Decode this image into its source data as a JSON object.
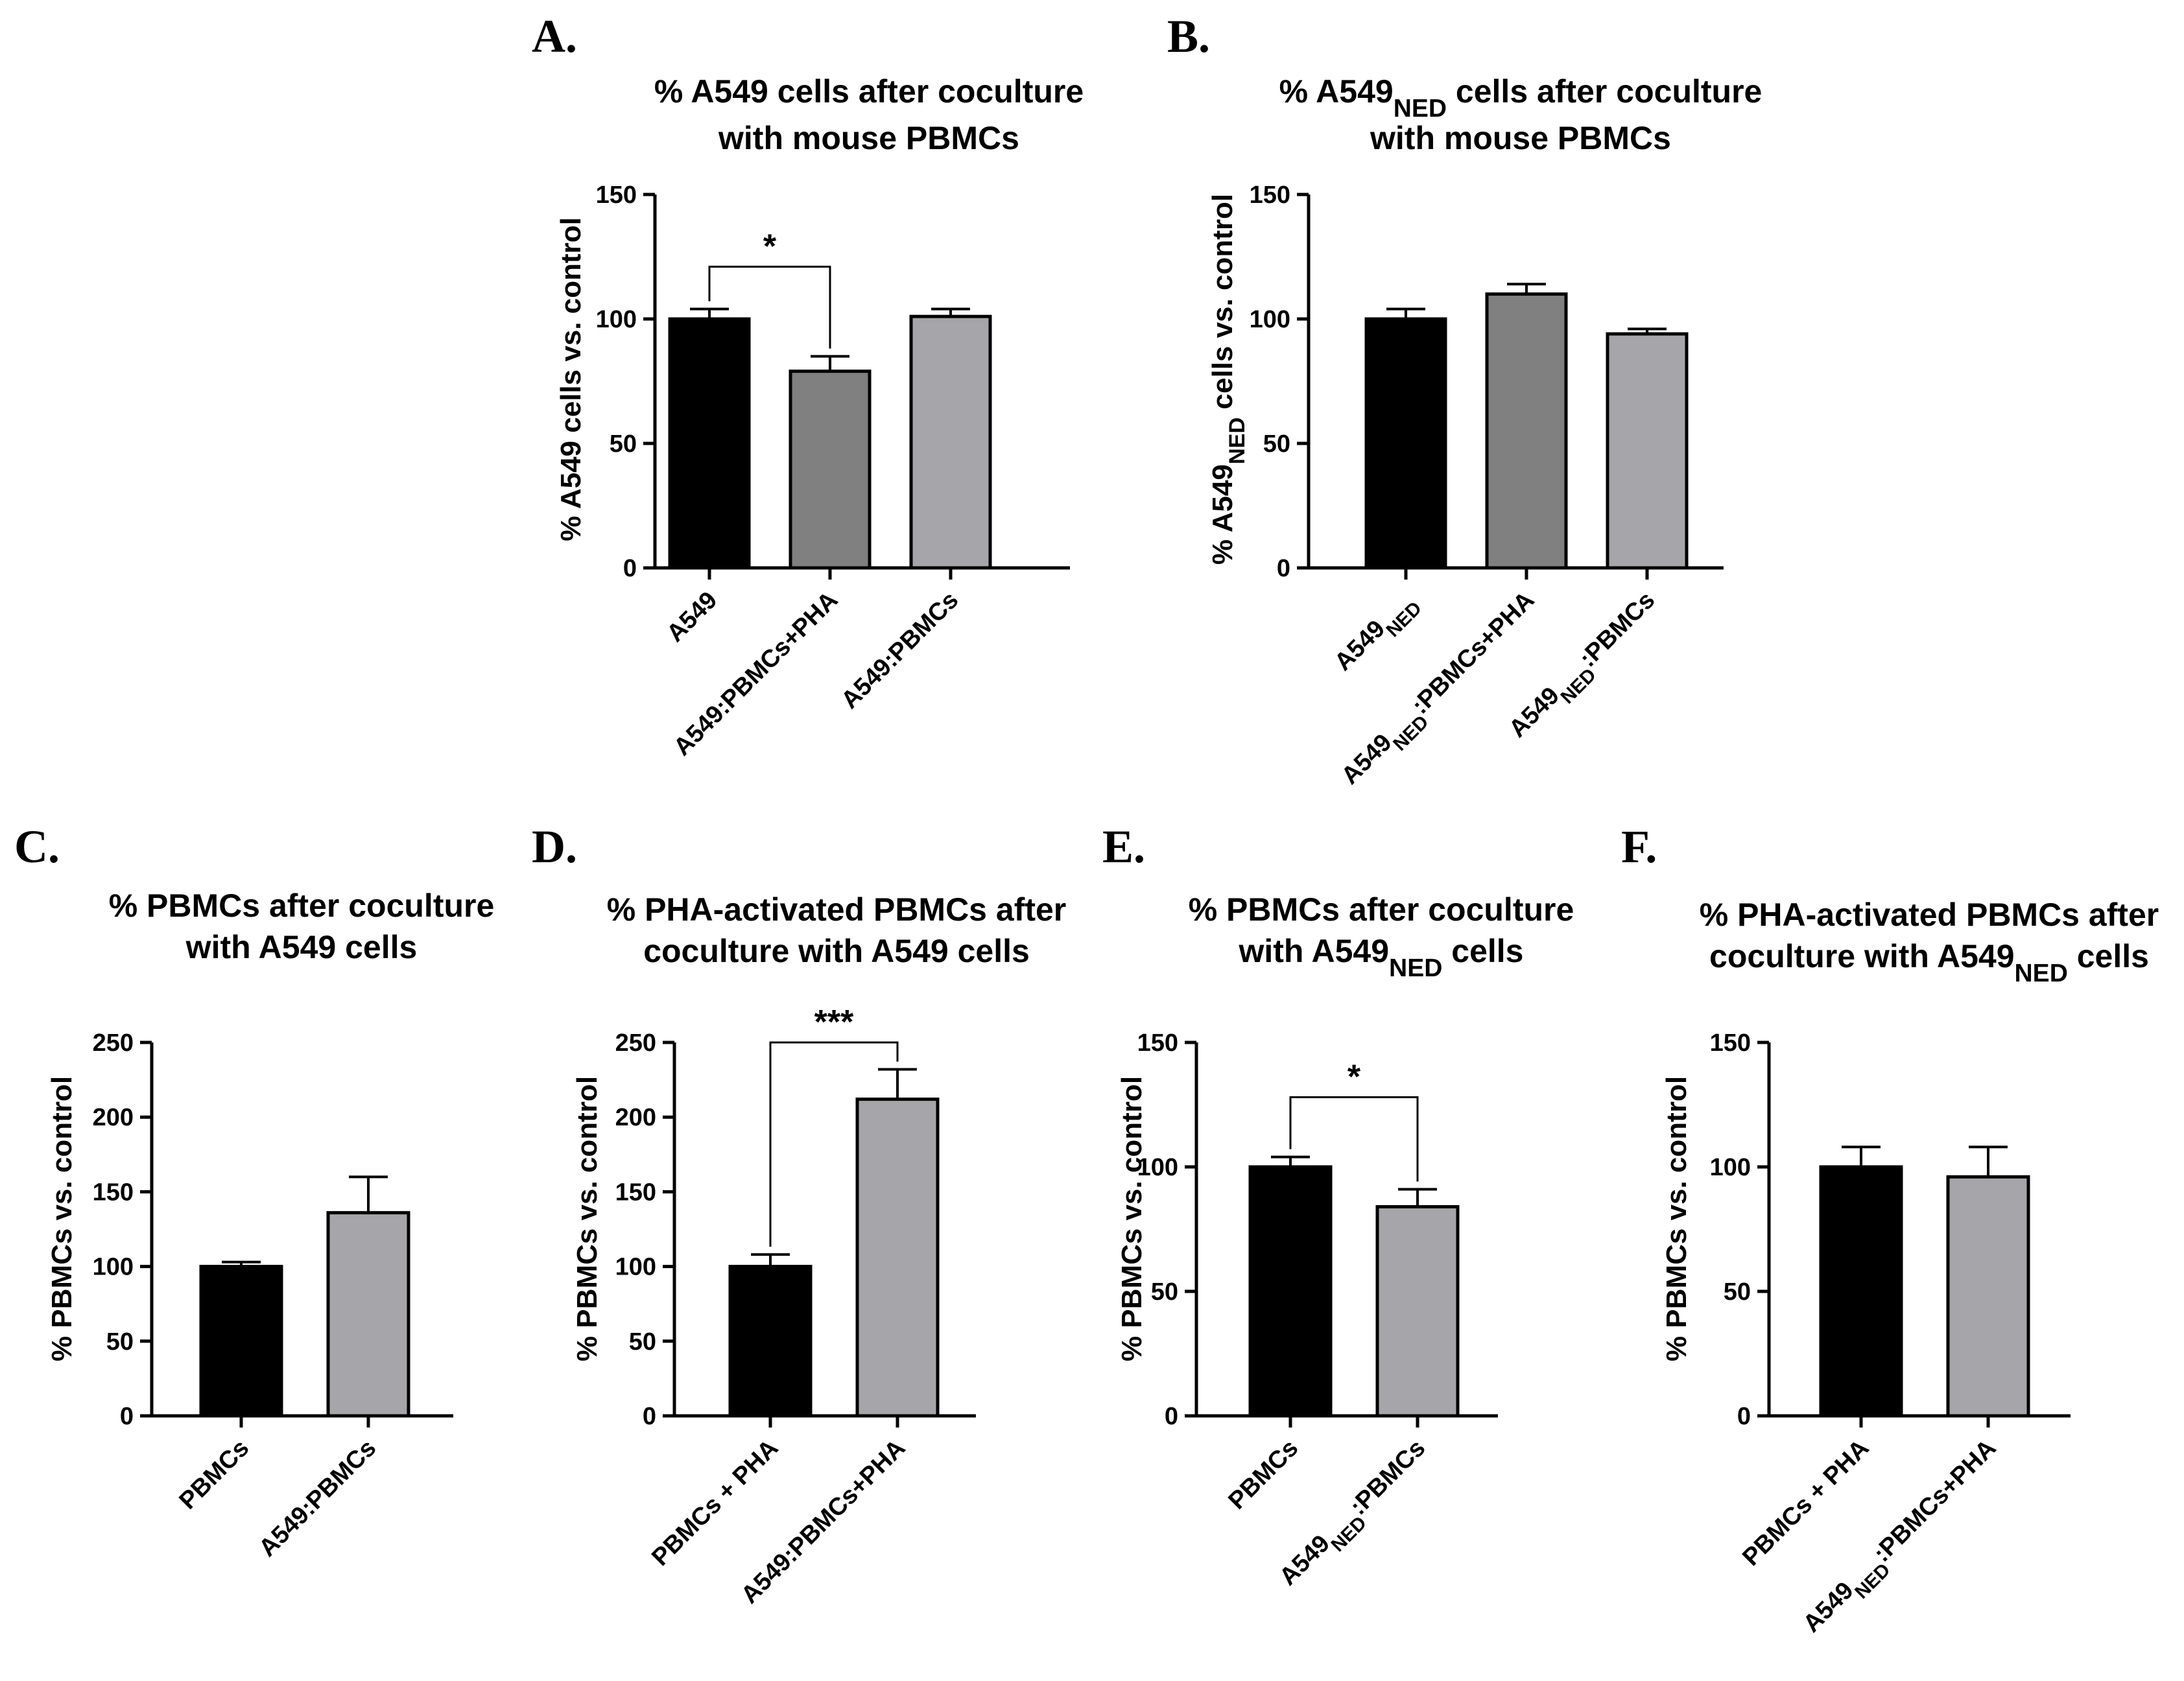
{
  "figure": {
    "description_free": true
  },
  "chart_data": [
    {
      "letter": "A.",
      "type": "bar",
      "title_lines": [
        [
          "% A549 cells after coculture",
          ""
        ],
        [
          "with mouse PBMCs",
          ""
        ]
      ],
      "title_parts": [
        [
          {
            "t": "% A549 cells after coculture"
          }
        ],
        [
          {
            "t": "with mouse PBMCs"
          }
        ]
      ],
      "ylabel_parts": [
        {
          "t": "% A549 cells vs. control"
        }
      ],
      "ylim": [
        0,
        150
      ],
      "yticks": [
        0,
        50,
        100,
        150
      ],
      "categories": [
        [
          {
            "t": "A549"
          }
        ],
        [
          {
            "t": "A549:PBMCs+PHA"
          }
        ],
        [
          {
            "t": "A549:PBMCs"
          }
        ]
      ],
      "values": [
        100,
        79,
        101
      ],
      "errors": [
        4,
        6,
        3
      ],
      "colors": [
        "#000000",
        "#808080",
        "#a6a5aa"
      ],
      "significance": [
        {
          "from": 0,
          "to": 1,
          "label": "*",
          "y": 121
        }
      ]
    },
    {
      "letter": "B.",
      "type": "bar",
      "title_parts": [
        [
          {
            "t": "% A549"
          },
          {
            "t": "NED",
            "sub": true
          },
          {
            "t": " cells after coculture"
          }
        ],
        [
          {
            "t": "with mouse PBMCs"
          }
        ]
      ],
      "ylabel_parts": [
        {
          "t": "% A549"
        },
        {
          "t": "NED",
          "sub": true
        },
        {
          "t": " cells vs. control"
        }
      ],
      "ylim": [
        0,
        150
      ],
      "yticks": [
        0,
        50,
        100,
        150
      ],
      "categories": [
        [
          {
            "t": "A549"
          },
          {
            "t": "NED",
            "sub": true
          }
        ],
        [
          {
            "t": "A549"
          },
          {
            "t": "NED",
            "sub": true
          },
          {
            "t": ":PBMCs+PHA"
          }
        ],
        [
          {
            "t": "A549"
          },
          {
            "t": "NED",
            "sub": true
          },
          {
            "t": ":PBMCs"
          }
        ]
      ],
      "values": [
        100,
        110,
        94
      ],
      "errors": [
        4,
        4,
        2
      ],
      "colors": [
        "#000000",
        "#808080",
        "#a6a5aa"
      ],
      "significance": []
    },
    {
      "letter": "C.",
      "type": "bar",
      "title_parts": [
        [
          {
            "t": "% PBMCs after coculture"
          }
        ],
        [
          {
            "t": "with A549 cells"
          }
        ]
      ],
      "ylabel_parts": [
        {
          "t": "% PBMCs vs. control"
        }
      ],
      "ylim": [
        0,
        250
      ],
      "yticks": [
        0,
        50,
        100,
        150,
        200,
        250
      ],
      "categories": [
        [
          {
            "t": "PBMCs"
          }
        ],
        [
          {
            "t": "A549:PBMCs"
          }
        ]
      ],
      "values": [
        100,
        136
      ],
      "errors": [
        3,
        24
      ],
      "colors": [
        "#000000",
        "#a6a5aa"
      ],
      "significance": []
    },
    {
      "letter": "D.",
      "type": "bar",
      "title_parts": [
        [
          {
            "t": "% PHA-activated PBMCs after"
          }
        ],
        [
          {
            "t": "coculture with A549 cells"
          }
        ]
      ],
      "ylabel_parts": [
        {
          "t": "% PBMCs vs. control"
        }
      ],
      "ylim": [
        0,
        250
      ],
      "yticks": [
        0,
        50,
        100,
        150,
        200,
        250
      ],
      "categories": [
        [
          {
            "t": "PBMCs + PHA"
          }
        ],
        [
          {
            "t": "A549:PBMCs+PHA"
          }
        ]
      ],
      "values": [
        100,
        212
      ],
      "errors": [
        8,
        20
      ],
      "colors": [
        "#000000",
        "#a6a5aa"
      ],
      "significance": [
        {
          "from": 0,
          "to": 1,
          "label": "***",
          "y": 250
        }
      ]
    },
    {
      "letter": "E.",
      "type": "bar",
      "title_parts": [
        [
          {
            "t": "% PBMCs after coculture"
          }
        ],
        [
          {
            "t": "with A549"
          },
          {
            "t": "NED",
            "sub": true
          },
          {
            "t": " cells"
          }
        ]
      ],
      "ylabel_parts": [
        {
          "t": "% PBMCs vs. control"
        }
      ],
      "ylim": [
        0,
        150
      ],
      "yticks": [
        0,
        50,
        100,
        150
      ],
      "categories": [
        [
          {
            "t": "PBMCs"
          }
        ],
        [
          {
            "t": "A549"
          },
          {
            "t": "NED",
            "sub": true
          },
          {
            "t": ":PBMCs"
          }
        ]
      ],
      "values": [
        100,
        84
      ],
      "errors": [
        4,
        7
      ],
      "colors": [
        "#000000",
        "#a6a5aa"
      ],
      "significance": [
        {
          "from": 0,
          "to": 1,
          "label": "*",
          "y": 128
        }
      ]
    },
    {
      "letter": "F.",
      "type": "bar",
      "title_parts": [
        [
          {
            "t": "% PHA-activated PBMCs after"
          }
        ],
        [
          {
            "t": "coculture with A549"
          },
          {
            "t": "NED",
            "sub": true
          },
          {
            "t": " cells"
          }
        ]
      ],
      "ylabel_parts": [
        {
          "t": "% PBMCs vs. control"
        }
      ],
      "ylim": [
        0,
        150
      ],
      "yticks": [
        0,
        50,
        100,
        150
      ],
      "categories": [
        [
          {
            "t": "PBMCs + PHA"
          }
        ],
        [
          {
            "t": "A549"
          },
          {
            "t": "NED",
            "sub": true
          },
          {
            "t": ":PBMCs+PHA"
          }
        ]
      ],
      "values": [
        100,
        96
      ],
      "errors": [
        8,
        12
      ],
      "colors": [
        "#000000",
        "#a6a5aa"
      ],
      "significance": []
    }
  ]
}
